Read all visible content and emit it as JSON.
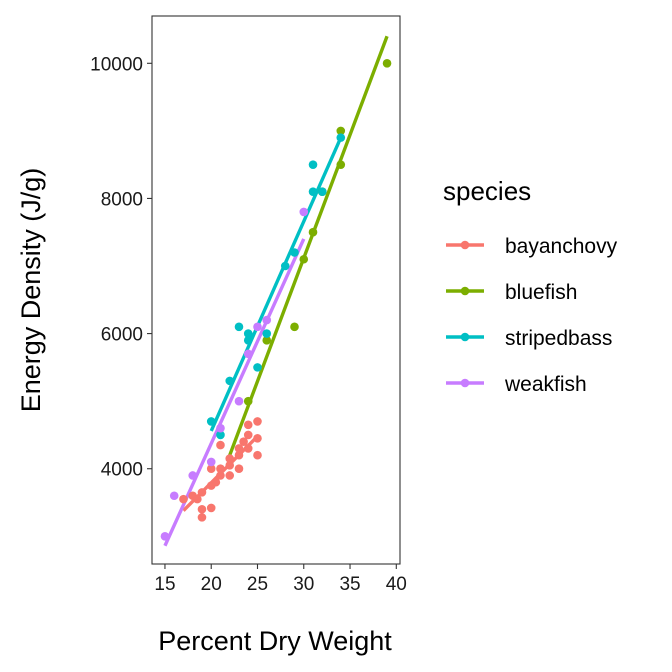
{
  "chart_data": {
    "type": "scatter",
    "xlabel": "Percent Dry Weight",
    "ylabel": "Energy Density (J/g)",
    "xlim": [
      13.6,
      40.4
    ],
    "ylim": [
      2590,
      10700
    ],
    "xticks": [
      15,
      20,
      25,
      30,
      35,
      40
    ],
    "yticks": [
      4000,
      6000,
      8000,
      10000
    ],
    "xtick_labels": [
      "15",
      "20",
      "25",
      "30",
      "35",
      "40"
    ],
    "ytick_labels": [
      "4000",
      "6000",
      "8000",
      "10000"
    ],
    "grid": false,
    "legend": {
      "title": "species",
      "placement": "right"
    },
    "series": [
      {
        "name": "bayanchovy",
        "color": "#F8766D",
        "points": [
          [
            17,
            3550
          ],
          [
            18,
            3600
          ],
          [
            18.5,
            3550
          ],
          [
            19,
            3650
          ],
          [
            19,
            3400
          ],
          [
            19,
            3280
          ],
          [
            20,
            3420
          ],
          [
            20,
            3750
          ],
          [
            20,
            4000
          ],
          [
            20.5,
            3800
          ],
          [
            21,
            3900
          ],
          [
            21,
            4000
          ],
          [
            21,
            4350
          ],
          [
            22,
            3900
          ],
          [
            22,
            4050
          ],
          [
            22,
            4150
          ],
          [
            23,
            4000
          ],
          [
            23,
            4200
          ],
          [
            23,
            4300
          ],
          [
            23.5,
            4400
          ],
          [
            24,
            4300
          ],
          [
            24,
            4500
          ],
          [
            24,
            4650
          ],
          [
            25,
            4200
          ],
          [
            25,
            4450
          ],
          [
            25,
            4700
          ]
        ],
        "fit": [
          [
            17,
            3380
          ],
          [
            25,
            4480
          ]
        ]
      },
      {
        "name": "bluefish",
        "color": "#7CAE00",
        "points": [
          [
            24,
            5000
          ],
          [
            26,
            5900
          ],
          [
            29,
            6100
          ],
          [
            30,
            7100
          ],
          [
            31,
            7500
          ],
          [
            32,
            8100
          ],
          [
            34,
            8500
          ],
          [
            34,
            9000
          ],
          [
            39,
            10000
          ]
        ],
        "fit": [
          [
            22,
            4200
          ],
          [
            39,
            10400
          ]
        ]
      },
      {
        "name": "stripedbass",
        "color": "#00BFC4",
        "points": [
          [
            20,
            4700
          ],
          [
            21,
            4500
          ],
          [
            22,
            5300
          ],
          [
            23,
            6100
          ],
          [
            24,
            5900
          ],
          [
            24,
            6000
          ],
          [
            25,
            5500
          ],
          [
            26,
            6000
          ],
          [
            28,
            7000
          ],
          [
            29,
            7200
          ],
          [
            31,
            8100
          ],
          [
            31,
            8500
          ],
          [
            32,
            8100
          ],
          [
            34,
            8900
          ]
        ],
        "fit": [
          [
            20,
            4560
          ],
          [
            34,
            8900
          ]
        ]
      },
      {
        "name": "weakfish",
        "color": "#C77CFF",
        "points": [
          [
            15,
            3000
          ],
          [
            16,
            3600
          ],
          [
            18,
            3900
          ],
          [
            20,
            4100
          ],
          [
            21,
            4600
          ],
          [
            23,
            5000
          ],
          [
            24,
            5700
          ],
          [
            25,
            6100
          ],
          [
            26,
            6200
          ],
          [
            30,
            7800
          ]
        ],
        "fit": [
          [
            15,
            2860
          ],
          [
            30,
            7400
          ]
        ]
      }
    ]
  }
}
